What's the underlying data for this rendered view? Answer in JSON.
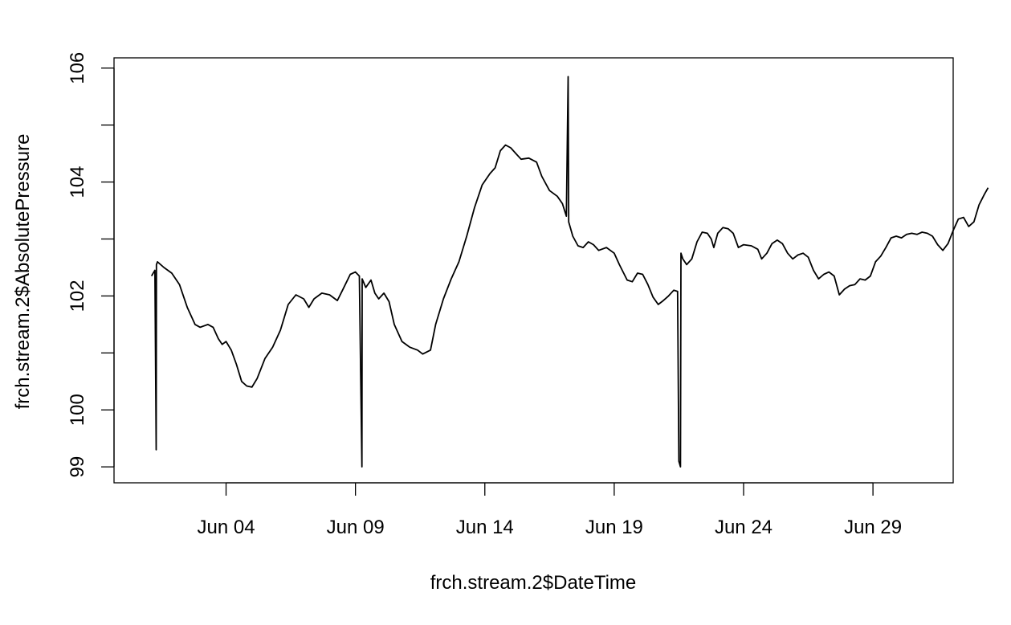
{
  "chart_data": {
    "type": "line",
    "title": "",
    "xlabel": "frch.stream.2$DateTime",
    "ylabel": "frch.stream.2$AbsolutePressure",
    "x_ticks": [
      {
        "label": "Jun 04",
        "day": 4
      },
      {
        "label": "Jun 09",
        "day": 9
      },
      {
        "label": "Jun 14",
        "day": 14
      },
      {
        "label": "Jun 19",
        "day": 19
      },
      {
        "label": "Jun 24",
        "day": 24
      },
      {
        "label": "Jun 29",
        "day": 29
      }
    ],
    "y_ticks": [
      {
        "value": 99,
        "label": "99"
      },
      {
        "value": 100,
        "label": "100"
      },
      {
        "value": 101,
        "label": ""
      },
      {
        "value": 102,
        "label": "102"
      },
      {
        "value": 103,
        "label": ""
      },
      {
        "value": 104,
        "label": "104"
      },
      {
        "value": 105,
        "label": ""
      },
      {
        "value": 106,
        "label": "106"
      }
    ],
    "xlim": [
      -0.33,
      32.1
    ],
    "ylim": [
      98.72,
      106.18
    ],
    "grid": false,
    "series": [
      {
        "color": "#000000",
        "points": [
          [
            1.12,
            102.35
          ],
          [
            1.25,
            102.45
          ],
          [
            1.3,
            99.3
          ],
          [
            1.31,
            102.55
          ],
          [
            1.35,
            102.6
          ],
          [
            1.6,
            102.5
          ],
          [
            1.9,
            102.4
          ],
          [
            2.2,
            102.2
          ],
          [
            2.5,
            101.8
          ],
          [
            2.8,
            101.5
          ],
          [
            3.0,
            101.45
          ],
          [
            3.3,
            101.5
          ],
          [
            3.5,
            101.45
          ],
          [
            3.7,
            101.25
          ],
          [
            3.85,
            101.15
          ],
          [
            4.0,
            101.2
          ],
          [
            4.2,
            101.05
          ],
          [
            4.4,
            100.8
          ],
          [
            4.6,
            100.5
          ],
          [
            4.8,
            100.42
          ],
          [
            5.0,
            100.4
          ],
          [
            5.2,
            100.55
          ],
          [
            5.5,
            100.9
          ],
          [
            5.8,
            101.1
          ],
          [
            6.1,
            101.4
          ],
          [
            6.4,
            101.85
          ],
          [
            6.7,
            102.02
          ],
          [
            7.0,
            101.95
          ],
          [
            7.2,
            101.8
          ],
          [
            7.4,
            101.95
          ],
          [
            7.7,
            102.05
          ],
          [
            8.0,
            102.02
          ],
          [
            8.3,
            101.92
          ],
          [
            8.5,
            102.1
          ],
          [
            8.8,
            102.38
          ],
          [
            9.0,
            102.42
          ],
          [
            9.15,
            102.35
          ],
          [
            9.25,
            99.0
          ],
          [
            9.26,
            102.3
          ],
          [
            9.4,
            102.15
          ],
          [
            9.6,
            102.28
          ],
          [
            9.75,
            102.05
          ],
          [
            9.9,
            101.95
          ],
          [
            10.1,
            102.05
          ],
          [
            10.3,
            101.9
          ],
          [
            10.5,
            101.5
          ],
          [
            10.8,
            101.2
          ],
          [
            11.1,
            101.1
          ],
          [
            11.4,
            101.05
          ],
          [
            11.6,
            100.98
          ],
          [
            11.9,
            101.05
          ],
          [
            12.1,
            101.5
          ],
          [
            12.4,
            101.95
          ],
          [
            12.7,
            102.3
          ],
          [
            13.0,
            102.6
          ],
          [
            13.3,
            103.05
          ],
          [
            13.6,
            103.55
          ],
          [
            13.9,
            103.95
          ],
          [
            14.2,
            104.15
          ],
          [
            14.4,
            104.25
          ],
          [
            14.6,
            104.55
          ],
          [
            14.8,
            104.65
          ],
          [
            15.0,
            104.6
          ],
          [
            15.2,
            104.5
          ],
          [
            15.4,
            104.4
          ],
          [
            15.7,
            104.42
          ],
          [
            16.0,
            104.35
          ],
          [
            16.2,
            104.1
          ],
          [
            16.5,
            103.85
          ],
          [
            16.8,
            103.75
          ],
          [
            17.0,
            103.62
          ],
          [
            17.15,
            103.4
          ],
          [
            17.22,
            105.85
          ],
          [
            17.24,
            103.3
          ],
          [
            17.4,
            103.05
          ],
          [
            17.6,
            102.88
          ],
          [
            17.8,
            102.85
          ],
          [
            18.0,
            102.95
          ],
          [
            18.2,
            102.9
          ],
          [
            18.4,
            102.8
          ],
          [
            18.7,
            102.85
          ],
          [
            19.0,
            102.75
          ],
          [
            19.2,
            102.55
          ],
          [
            19.5,
            102.28
          ],
          [
            19.7,
            102.25
          ],
          [
            19.9,
            102.4
          ],
          [
            20.1,
            102.38
          ],
          [
            20.3,
            102.2
          ],
          [
            20.5,
            101.98
          ],
          [
            20.7,
            101.85
          ],
          [
            20.9,
            101.92
          ],
          [
            21.1,
            102.0
          ],
          [
            21.3,
            102.1
          ],
          [
            21.45,
            102.08
          ],
          [
            21.5,
            99.1
          ],
          [
            21.56,
            99.0
          ],
          [
            21.58,
            102.75
          ],
          [
            21.65,
            102.65
          ],
          [
            21.8,
            102.55
          ],
          [
            22.0,
            102.65
          ],
          [
            22.2,
            102.95
          ],
          [
            22.4,
            103.12
          ],
          [
            22.6,
            103.1
          ],
          [
            22.75,
            103.0
          ],
          [
            22.85,
            102.85
          ],
          [
            23.0,
            103.1
          ],
          [
            23.2,
            103.2
          ],
          [
            23.4,
            103.18
          ],
          [
            23.6,
            103.1
          ],
          [
            23.8,
            102.85
          ],
          [
            24.0,
            102.9
          ],
          [
            24.3,
            102.88
          ],
          [
            24.55,
            102.82
          ],
          [
            24.7,
            102.65
          ],
          [
            24.9,
            102.75
          ],
          [
            25.1,
            102.92
          ],
          [
            25.3,
            102.98
          ],
          [
            25.5,
            102.92
          ],
          [
            25.7,
            102.75
          ],
          [
            25.9,
            102.65
          ],
          [
            26.1,
            102.72
          ],
          [
            26.3,
            102.75
          ],
          [
            26.5,
            102.68
          ],
          [
            26.7,
            102.45
          ],
          [
            26.9,
            102.3
          ],
          [
            27.1,
            102.38
          ],
          [
            27.3,
            102.42
          ],
          [
            27.5,
            102.35
          ],
          [
            27.7,
            102.02
          ],
          [
            27.9,
            102.12
          ],
          [
            28.1,
            102.18
          ],
          [
            28.3,
            102.2
          ],
          [
            28.5,
            102.3
          ],
          [
            28.7,
            102.28
          ],
          [
            28.9,
            102.35
          ],
          [
            29.1,
            102.6
          ],
          [
            29.3,
            102.7
          ],
          [
            29.5,
            102.85
          ],
          [
            29.7,
            103.02
          ],
          [
            29.9,
            103.05
          ],
          [
            30.1,
            103.02
          ],
          [
            30.3,
            103.08
          ],
          [
            30.5,
            103.1
          ],
          [
            30.7,
            103.08
          ],
          [
            30.9,
            103.12
          ],
          [
            31.1,
            103.1
          ],
          [
            31.3,
            103.05
          ],
          [
            31.5,
            102.9
          ],
          [
            31.7,
            102.8
          ],
          [
            31.9,
            102.92
          ],
          [
            32.1,
            103.15
          ],
          [
            32.3,
            103.35
          ],
          [
            32.5,
            103.38
          ],
          [
            32.7,
            103.22
          ],
          [
            32.9,
            103.3
          ],
          [
            33.1,
            103.6
          ],
          [
            33.3,
            103.78
          ],
          [
            33.45,
            103.9
          ]
        ]
      }
    ]
  }
}
